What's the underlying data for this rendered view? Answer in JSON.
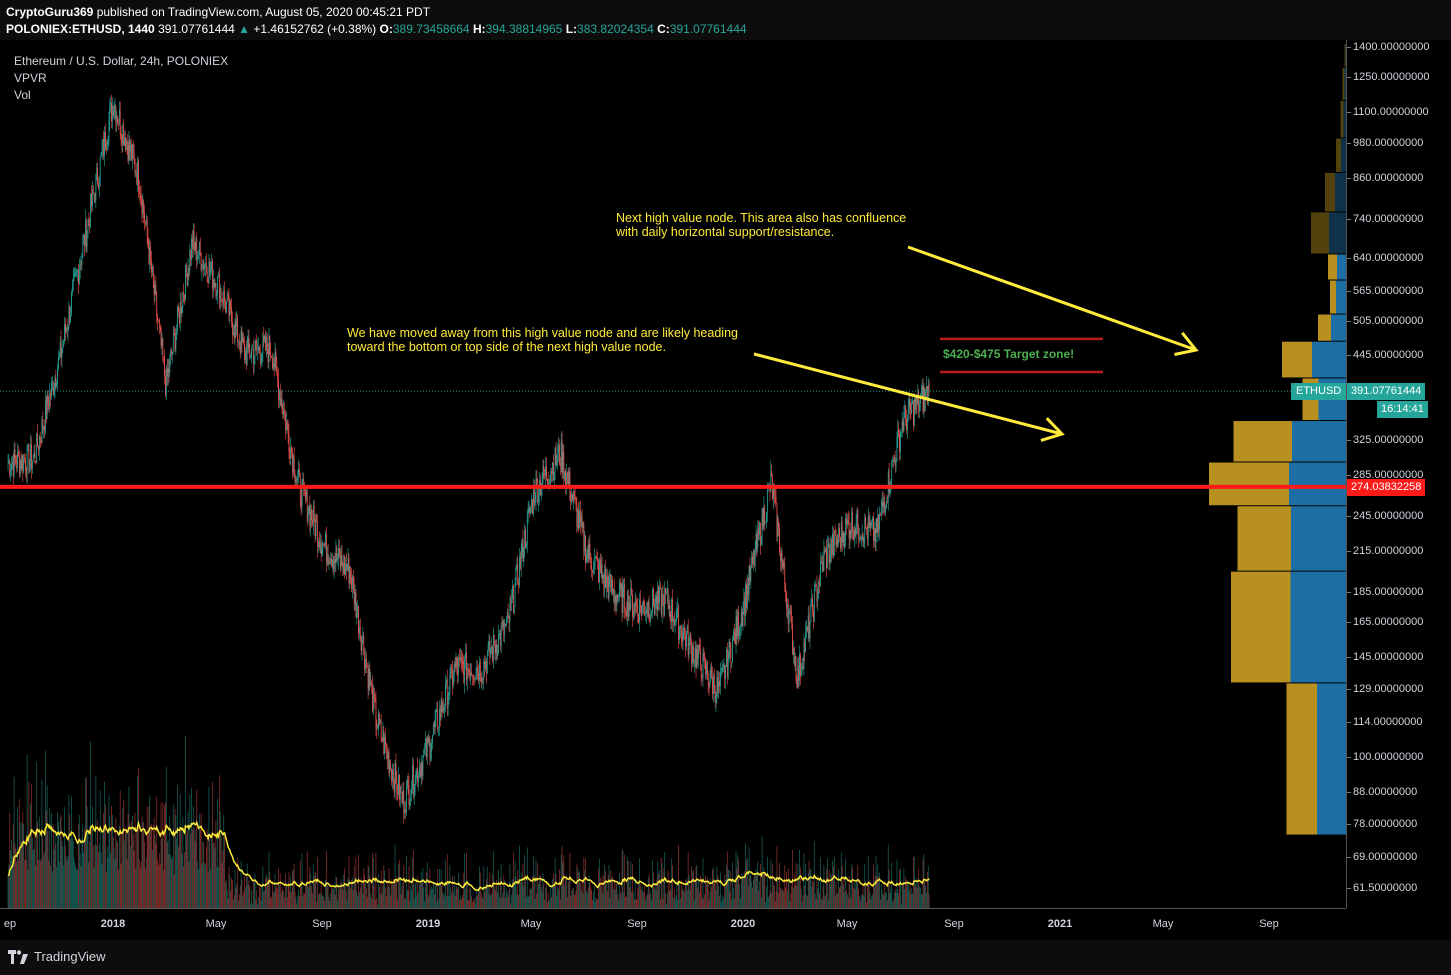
{
  "header": {
    "publisher": "CryptoGuru369",
    "published_text": "published on TradingView.com, August 05, 2020 00:45:21 PDT",
    "symbol": "POLONIEX:ETHUSD, 1440",
    "last": "391.07761444",
    "change": "+1.46152762 (+0.38%)",
    "o_label": "O:",
    "o": "389.73458664",
    "h_label": "H:",
    "h": "394.38814965",
    "l_label": "L:",
    "l": "383.82024354",
    "c_label": "C:",
    "c": "391.07761444"
  },
  "legend": {
    "title": "Ethereum / U.S. Dollar, 24h, POLONIEX",
    "indicator1": "VPVR",
    "indicator2": "Vol"
  },
  "annotations": {
    "note1_line1": "Next high value node. This area also has confluence",
    "note1_line2": "with daily horizontal support/resistance.",
    "note2_line1": "We have moved away from this high value node and are likely heading",
    "note2_line2": "toward the bottom or top side of the next high value node.",
    "target_zone": "$420-$475 Target zone!"
  },
  "price_axis": {
    "ticks": [
      "1400.00000000",
      "1250.00000000",
      "1100.00000000",
      "980.00000000",
      "860.00000000",
      "740.00000000",
      "640.00000000",
      "565.00000000",
      "505.00000000",
      "445.00000000",
      "325.00000000",
      "285.00000000",
      "245.00000000",
      "215.00000000",
      "185.00000000",
      "165.00000000",
      "145.00000000",
      "129.00000000",
      "114.00000000",
      "100.00000000",
      "88.00000000",
      "78.00000000",
      "69.00000000",
      "61.50000000"
    ],
    "current_price": "391.07761444",
    "countdown": "16:14:41",
    "red_line_price": "274.03832258",
    "symbol_tag": "ETHUSD"
  },
  "time_axis": {
    "labels": [
      {
        "text": "ep",
        "bold": false
      },
      {
        "text": "2018",
        "bold": true
      },
      {
        "text": "May",
        "bold": false
      },
      {
        "text": "Sep",
        "bold": false
      },
      {
        "text": "2019",
        "bold": true
      },
      {
        "text": "May",
        "bold": false
      },
      {
        "text": "Sep",
        "bold": false
      },
      {
        "text": "2020",
        "bold": true
      },
      {
        "text": "May",
        "bold": false
      },
      {
        "text": "Sep",
        "bold": false
      },
      {
        "text": "2021",
        "bold": true
      },
      {
        "text": "May",
        "bold": false
      },
      {
        "text": "Sep",
        "bold": false
      }
    ]
  },
  "footer": {
    "brand": "TradingView"
  },
  "colors": {
    "up": "#26a69a",
    "down": "#ef5350",
    "vpvr_up": "#1c6ea4",
    "vpvr_down": "#b8901f",
    "red_line": "#ff1a1a",
    "annotation": "#ffeb3b",
    "volume_ma": "#ffeb3b"
  },
  "chart_data": {
    "type": "candlestick",
    "scale": "log",
    "ylim": [
      58,
      1450
    ],
    "x": [
      "2017-09",
      "2017-10",
      "2017-11",
      "2017-12",
      "2018-01",
      "2018-02",
      "2018-03",
      "2018-04",
      "2018-05",
      "2018-06",
      "2018-07",
      "2018-08",
      "2018-09",
      "2018-10",
      "2018-11",
      "2018-12",
      "2019-01",
      "2019-02",
      "2019-03",
      "2019-04",
      "2019-05",
      "2019-06",
      "2019-07",
      "2019-08",
      "2019-09",
      "2019-10",
      "2019-11",
      "2019-12",
      "2020-01",
      "2020-02",
      "2020-03",
      "2020-04",
      "2020-05",
      "2020-06",
      "2020-07",
      "2020-08"
    ],
    "close": [
      300,
      305,
      450,
      720,
      1150,
      860,
      400,
      680,
      580,
      450,
      460,
      280,
      220,
      200,
      115,
      85,
      105,
      140,
      140,
      165,
      270,
      310,
      215,
      185,
      175,
      180,
      150,
      128,
      180,
      280,
      135,
      210,
      240,
      230,
      350,
      391.08
    ],
    "vpvr": [
      {
        "price_low": 1300,
        "price_high": 1420,
        "up": 1,
        "down": 2
      },
      {
        "price_low": 1150,
        "price_high": 1300,
        "up": 3,
        "down": 4
      },
      {
        "price_low": 1000,
        "price_high": 1150,
        "up": 5,
        "down": 6
      },
      {
        "price_low": 880,
        "price_high": 1000,
        "up": 10,
        "down": 10
      },
      {
        "price_low": 760,
        "price_high": 880,
        "up": 22,
        "down": 20
      },
      {
        "price_low": 650,
        "price_high": 760,
        "up": 34,
        "down": 36
      },
      {
        "price_low": 590,
        "price_high": 650,
        "up": 18,
        "down": 18
      },
      {
        "price_low": 520,
        "price_high": 590,
        "up": 20,
        "down": 12
      },
      {
        "price_low": 470,
        "price_high": 520,
        "up": 30,
        "down": 26
      },
      {
        "price_low": 410,
        "price_high": 470,
        "up": 68,
        "down": 60
      },
      {
        "price_low": 350,
        "price_high": 410,
        "up": 55,
        "down": 32
      },
      {
        "price_low": 300,
        "price_high": 350,
        "up": 108,
        "down": 117
      },
      {
        "price_low": 255,
        "price_high": 300,
        "up": 114,
        "down": 160
      },
      {
        "price_low": 200,
        "price_high": 255,
        "up": 110,
        "down": 107
      },
      {
        "price_low": 132,
        "price_high": 200,
        "up": 111,
        "down": 119
      },
      {
        "price_low": 75,
        "price_high": 132,
        "up": 58,
        "down": 61
      }
    ],
    "horizontal_line": 274.03832258
  }
}
